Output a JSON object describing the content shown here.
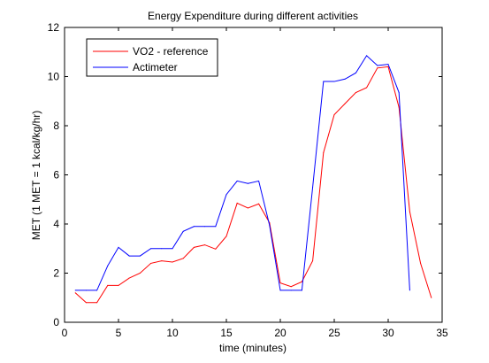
{
  "chart_data": {
    "type": "line",
    "title": "Energy Expenditure during different activities",
    "xlabel": "time (minutes)",
    "ylabel": "MET (1 MET = 1 kcal/kg/hr)",
    "xlim": [
      0,
      35
    ],
    "ylim": [
      0,
      12
    ],
    "xticks": [
      "0",
      "5",
      "10",
      "15",
      "20",
      "25",
      "30",
      "35"
    ],
    "yticks": [
      "0",
      "2",
      "4",
      "6",
      "8",
      "10",
      "12"
    ],
    "grid": false,
    "legend_placement": "top-left",
    "series": [
      {
        "name": "VO2 - reference",
        "color": "#ff0000",
        "x": [
          1,
          2,
          3,
          4,
          5,
          6,
          7,
          8,
          9,
          10,
          11,
          12,
          13,
          14,
          15,
          16,
          17,
          18,
          19,
          20,
          21,
          22,
          23,
          24,
          25,
          26,
          27,
          28,
          29,
          30,
          31,
          32,
          33,
          34
        ],
        "y": [
          1.2,
          0.8,
          0.8,
          1.5,
          1.5,
          1.8,
          2.0,
          2.4,
          2.5,
          2.45,
          2.6,
          3.05,
          3.15,
          2.98,
          3.5,
          4.85,
          4.65,
          4.82,
          4.05,
          1.6,
          1.45,
          1.65,
          2.5,
          6.9,
          8.45,
          8.9,
          9.35,
          9.55,
          10.35,
          10.4,
          8.75,
          4.5,
          2.4,
          1.0
        ]
      },
      {
        "name": "Actimeter",
        "color": "#0000ff",
        "x": [
          1,
          2,
          3,
          4,
          5,
          6,
          7,
          8,
          9,
          10,
          11,
          12,
          13,
          14,
          15,
          16,
          17,
          18,
          19,
          20,
          21,
          22,
          23,
          24,
          25,
          26,
          27,
          28,
          29,
          30,
          31,
          32
        ],
        "y": [
          1.3,
          1.3,
          1.3,
          2.3,
          3.05,
          2.7,
          2.7,
          3.0,
          3.0,
          3.0,
          3.7,
          3.9,
          3.9,
          3.9,
          5.2,
          5.75,
          5.65,
          5.75,
          3.95,
          1.3,
          1.3,
          1.3,
          5.5,
          9.8,
          9.8,
          9.9,
          10.15,
          10.85,
          10.45,
          10.5,
          9.35,
          1.3
        ]
      }
    ]
  }
}
